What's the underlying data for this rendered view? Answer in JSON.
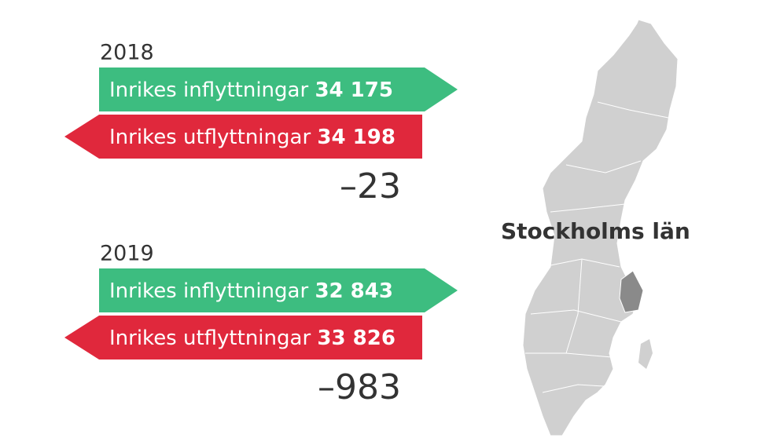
{
  "blocks": [
    {
      "year": "2018",
      "inflow": {
        "label": "Inrikes inflyttningar",
        "value": "34 175"
      },
      "outflow": {
        "label": "Inrikes utflyttningar",
        "value": "34 198"
      },
      "net": "–23"
    },
    {
      "year": "2019",
      "inflow": {
        "label": "Inrikes inflyttningar",
        "value": "32 843"
      },
      "outflow": {
        "label": "Inrikes utflyttningar",
        "value": "33 826"
      },
      "net": "–983"
    }
  ],
  "map": {
    "label": "Stockholms län"
  }
}
